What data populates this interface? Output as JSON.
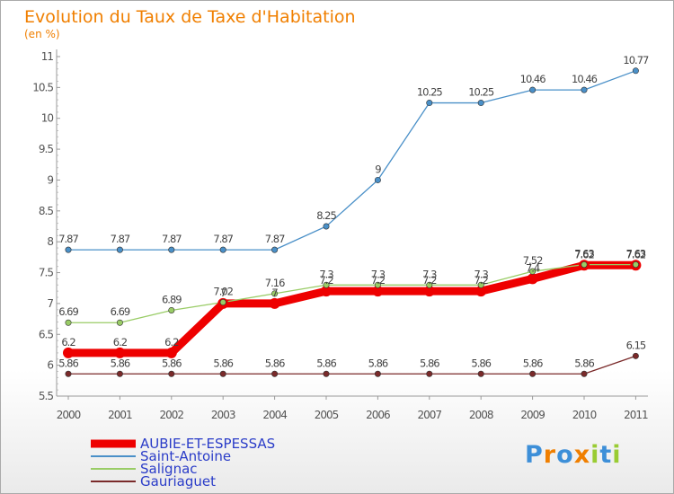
{
  "chart_data": {
    "type": "line",
    "title": "Evolution du Taux de Taxe d'Habitation",
    "subtitle": "(en %)",
    "x": [
      "2000",
      "2001",
      "2002",
      "2003",
      "2004",
      "2005",
      "2006",
      "2007",
      "2008",
      "2009",
      "2010",
      "2011"
    ],
    "ylim": [
      5.5,
      11
    ],
    "yticks": [
      "5.5",
      "6",
      "6.5",
      "7",
      "7.5",
      "8",
      "8.5",
      "9",
      "9.5",
      "10",
      "10.5",
      "11"
    ],
    "series": [
      {
        "name": "AUBIE-ET-ESPESSAS",
        "color": "#ee0000",
        "values": [
          6.2,
          6.2,
          6.2,
          7.0,
          7.0,
          7.2,
          7.2,
          7.2,
          7.2,
          7.4,
          7.62,
          7.62
        ],
        "labels": [
          "6.2",
          "6.2",
          "6.2",
          "7",
          "7",
          "7.2",
          "7.2",
          "7.2",
          "7.2",
          "7.4",
          "7.62",
          "7.62"
        ]
      },
      {
        "name": "Saint-Antoine",
        "color": "#4a90c8",
        "values": [
          7.87,
          7.87,
          7.87,
          7.87,
          7.87,
          8.25,
          9,
          10.25,
          10.25,
          10.46,
          10.46,
          10.77
        ],
        "labels": [
          "7.87",
          "7.87",
          "7.87",
          "7.87",
          "7.87",
          "8.25",
          "9",
          "10.25",
          "10.25",
          "10.46",
          "10.46",
          "10.77"
        ]
      },
      {
        "name": "Salignac",
        "color": "#99cc66",
        "values": [
          6.69,
          6.69,
          6.89,
          7.02,
          7.16,
          7.3,
          7.3,
          7.3,
          7.3,
          7.52,
          7.63,
          7.63
        ],
        "labels": [
          "6.69",
          "6.69",
          "6.89",
          "7.02",
          "7.16",
          "7.3",
          "7.3",
          "7.3",
          "7.3",
          "7.52",
          "7.63",
          "7.63"
        ]
      },
      {
        "name": "Gauriaguet",
        "color": "#7a2a2a",
        "values": [
          5.86,
          5.86,
          5.86,
          5.86,
          5.86,
          5.86,
          5.86,
          5.86,
          5.86,
          5.86,
          5.86,
          6.15
        ],
        "labels": [
          "5.86",
          "5.86",
          "5.86",
          "5.86",
          "5.86",
          "5.86",
          "5.86",
          "5.86",
          "5.86",
          "5.86",
          "5.86",
          "6.15"
        ]
      }
    ],
    "grid": false,
    "legend": "bottom-left"
  },
  "logo": {
    "letters": [
      "P",
      "r",
      "o",
      "x",
      "i",
      "t",
      "i"
    ]
  }
}
